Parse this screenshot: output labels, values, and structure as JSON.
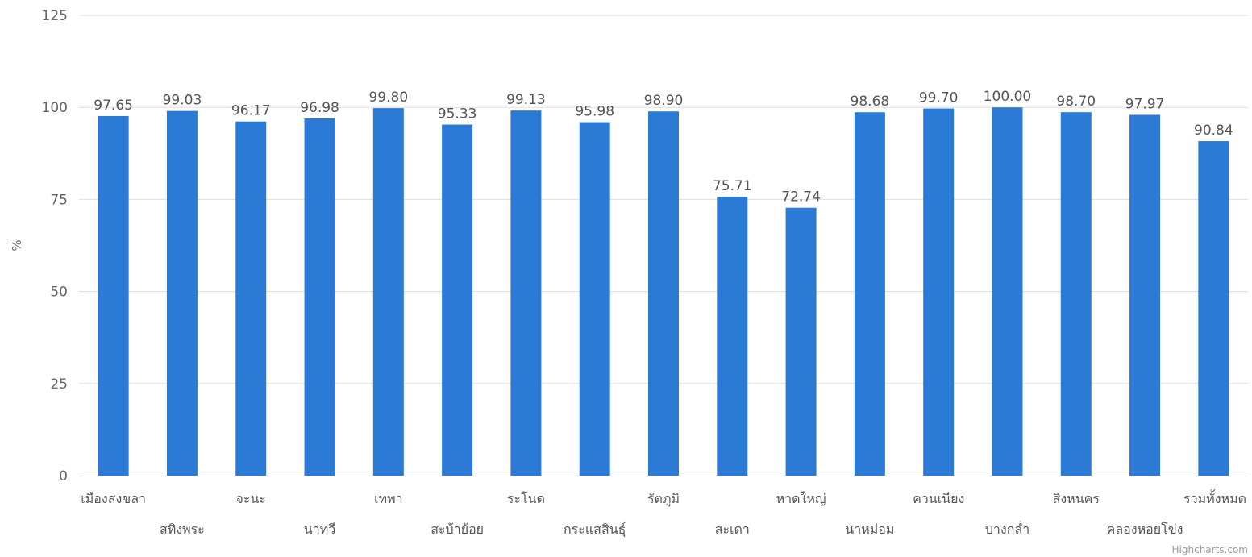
{
  "chart_data": {
    "type": "bar",
    "categories": [
      "เมืองสงขลา",
      "สทิงพระ",
      "จะนะ",
      "นาทวี",
      "เทพา",
      "สะบ้าย้อย",
      "ระโนด",
      "กระแสสินธุ์",
      "รัตภูมิ",
      "สะเดา",
      "หาดใหญ่",
      "นาหม่อม",
      "ควนเนียง",
      "บางกล่ำ",
      "สิงหนคร",
      "คลองหอยโข่ง",
      "รวมทั้งหมด"
    ],
    "values": [
      97.65,
      99.03,
      96.17,
      96.98,
      99.8,
      95.33,
      99.13,
      95.98,
      98.9,
      75.71,
      72.74,
      98.68,
      99.7,
      100.0,
      98.7,
      97.97,
      90.84
    ],
    "data_labels": [
      "97.65",
      "99.03",
      "96.17",
      "96.98",
      "99.80",
      "95.33",
      "99.13",
      "95.98",
      "98.90",
      "75.71",
      "72.74",
      "98.68",
      "99.70",
      "100.00",
      "98.70",
      "97.97",
      "90.84"
    ],
    "ylabel": "%",
    "ylim": [
      0,
      125
    ],
    "yticks": [
      0,
      25,
      50,
      75,
      100,
      125
    ],
    "grid": true,
    "color": "#2b7ad6",
    "credits": "Highcharts.com"
  }
}
